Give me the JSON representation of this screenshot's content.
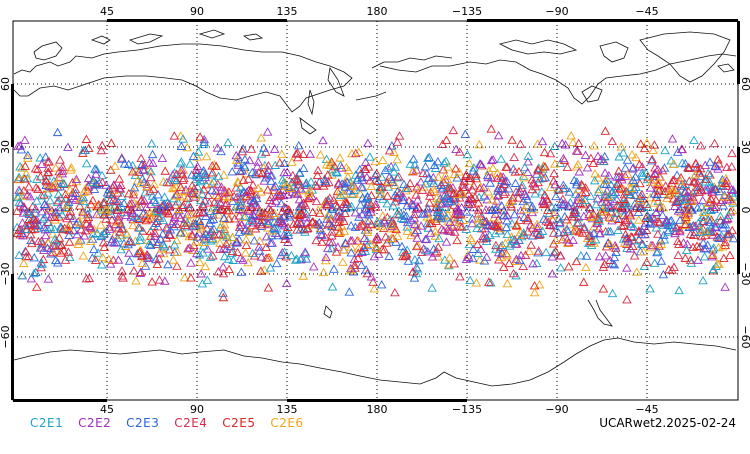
{
  "map": {
    "projection": "cylindrical equidistant",
    "center_longitude": 180,
    "lat_range": [
      -90,
      90
    ],
    "top_lon_labels": [
      "45",
      "90",
      "135",
      "180",
      "−135",
      "−90",
      "−45"
    ],
    "bottom_lon_labels": [
      "45",
      "90",
      "135",
      "180",
      "−135",
      "−90",
      "−45"
    ],
    "lat_labels": [
      "60",
      "30",
      "0",
      "−30",
      "−60"
    ],
    "marker_shape": "triangle-outline",
    "observations_latitude_band": [
      -45,
      45
    ]
  },
  "legend": [
    {
      "label": "C2E1",
      "color": "#1aa3c8"
    },
    {
      "label": "C2E2",
      "color": "#a12ec4"
    },
    {
      "label": "C2E3",
      "color": "#2a64e0"
    },
    {
      "label": "C2E4",
      "color": "#d62a4a"
    },
    {
      "label": "C2E5",
      "color": "#e02222"
    },
    {
      "label": "C2E6",
      "color": "#f0a416"
    }
  ],
  "stamp": "UCARwet2.2025-02-24"
}
